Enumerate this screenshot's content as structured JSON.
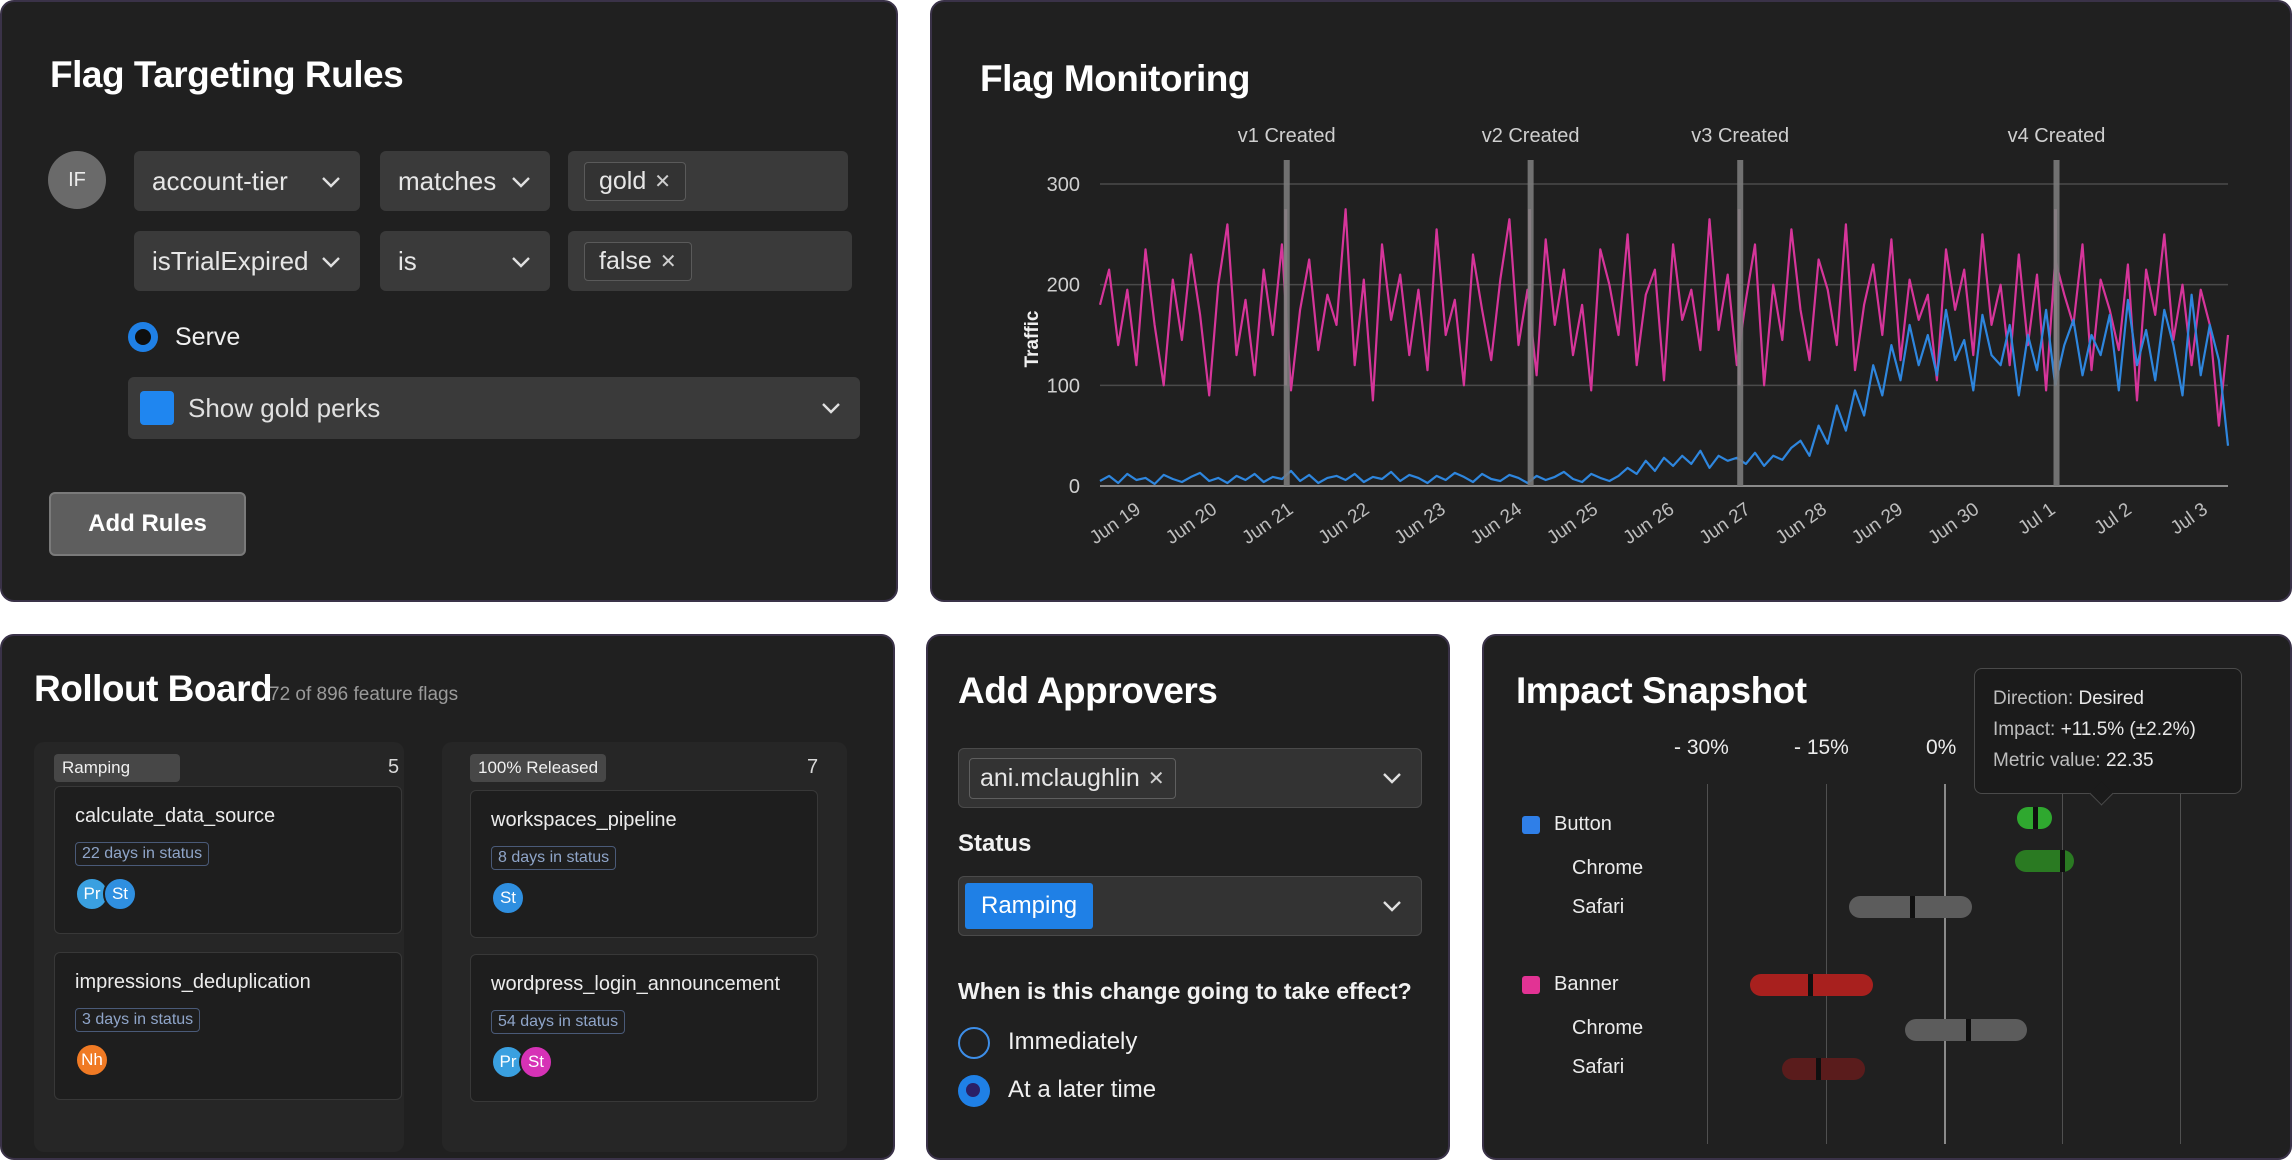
{
  "targeting": {
    "title": "Flag Targeting Rules",
    "if_label": "IF",
    "rows": [
      {
        "attribute": "account-tier",
        "operator": "matches",
        "value": "gold"
      },
      {
        "attribute": "isTrialExpired",
        "operator": "is",
        "value": "false"
      }
    ],
    "serve_label": "Serve",
    "variation": "Show gold perks",
    "variation_color": "#1f86f0",
    "add_button": "Add Rules"
  },
  "monitoring": {
    "title": "Flag Monitoring",
    "y_label": "Traffic",
    "chart_data": {
      "type": "line",
      "title": "Flag Monitoring",
      "ylabel": "Traffic",
      "ylim": [
        0,
        300
      ],
      "yticks": [
        0,
        100,
        200,
        300
      ],
      "xlim": [
        0,
        14.8
      ],
      "x_tick_labels": [
        "Jun 19",
        "Jun 20",
        "Jun 21",
        "Jun 22",
        "Jun 23",
        "Jun 24",
        "Jun 25",
        "Jun 26",
        "Jun 27",
        "Jun 28",
        "Jun 29",
        "Jun 30",
        "Jul 1",
        "Jul 2",
        "Jul 3"
      ],
      "annotations": [
        {
          "label": "v1 Created",
          "x": 2.45
        },
        {
          "label": "v2 Created",
          "x": 5.65
        },
        {
          "label": "v3 Created",
          "x": 8.4
        },
        {
          "label": "v4 Created",
          "x": 12.55
        }
      ],
      "series": [
        {
          "name": "pink",
          "color": "#d6359a",
          "values": [
            180,
            215,
            140,
            195,
            120,
            235,
            160,
            100,
            205,
            145,
            230,
            170,
            90,
            200,
            260,
            130,
            185,
            110,
            215,
            150,
            240,
            95,
            175,
            225,
            135,
            190,
            160,
            275,
            120,
            205,
            85,
            240,
            165,
            210,
            130,
            195,
            115,
            255,
            150,
            185,
            100,
            230,
            175,
            125,
            205,
            265,
            140,
            195,
            110,
            245,
            160,
            215,
            130,
            180,
            95,
            235,
            200,
            150,
            250,
            120,
            190,
            215,
            105,
            240,
            165,
            195,
            135,
            265,
            155,
            210,
            120,
            185,
            240,
            100,
            200,
            145,
            255,
            175,
            125,
            225,
            195,
            140,
            260,
            115,
            180,
            220,
            150,
            245,
            125,
            205,
            165,
            190,
            105,
            235,
            175,
            215,
            130,
            250,
            160,
            200,
            120,
            230,
            140,
            210,
            95,
            225,
            190,
            160,
            240,
            115,
            205,
            175,
            135,
            220,
            85,
            215,
            170,
            250,
            145,
            200,
            120,
            195,
            160,
            60,
            150
          ],
          "spikes_at": [
            2.45,
            5.65,
            8.4,
            12.55
          ],
          "spike_height": 275,
          "spike_color": "#f0a0cd"
        },
        {
          "name": "blue",
          "color": "#2e86de",
          "values": [
            5,
            10,
            3,
            12,
            6,
            8,
            2,
            11,
            7,
            4,
            9,
            13,
            5,
            8,
            3,
            10,
            6,
            12,
            4,
            9,
            7,
            15,
            5,
            11,
            3,
            8,
            10,
            6,
            12,
            4,
            9,
            7,
            14,
            5,
            11,
            8,
            3,
            10,
            6,
            13,
            9,
            4,
            12,
            7,
            5,
            11,
            8,
            3,
            10,
            6,
            9,
            14,
            7,
            4,
            12,
            8,
            5,
            10,
            18,
            12,
            25,
            15,
            28,
            20,
            30,
            22,
            35,
            18,
            30,
            25,
            28,
            22,
            33,
            20,
            30,
            26,
            38,
            45,
            30,
            60,
            42,
            80,
            55,
            95,
            70,
            120,
            90,
            140,
            105,
            160,
            120,
            150,
            110,
            175,
            125,
            145,
            95,
            170,
            130,
            120,
            160,
            90,
            150,
            115,
            175,
            100,
            140,
            165,
            110,
            150,
            130,
            170,
            95,
            185,
            120,
            155,
            105,
            175,
            140,
            90,
            190,
            110,
            160,
            125,
            40
          ]
        }
      ]
    }
  },
  "rollout": {
    "title": "Rollout Board",
    "subtitle": "72 of 896 feature flags",
    "columns": [
      {
        "label": "Ramping",
        "count": "5",
        "cards": [
          {
            "name": "calculate_data_source",
            "days": "22 days in status",
            "avatars": [
              {
                "initials": "Pr",
                "color": "#3aa0e0"
              },
              {
                "initials": "St",
                "color": "#2f8fe0"
              }
            ]
          },
          {
            "name": "impressions_deduplication",
            "days": "3 days in status",
            "avatars": [
              {
                "initials": "Nh",
                "color": "#f07a24"
              }
            ]
          }
        ]
      },
      {
        "label": "100% Released",
        "count": "7",
        "cards": [
          {
            "name": "workspaces_pipeline",
            "days": "8 days in status",
            "avatars": [
              {
                "initials": "St",
                "color": "#2f8fe0"
              }
            ]
          },
          {
            "name": "wordpress_login_announcement",
            "days": "54 days in status",
            "avatars": [
              {
                "initials": "Pr",
                "color": "#3aa0e0"
              },
              {
                "initials": "St",
                "color": "#d632b6"
              }
            ]
          }
        ]
      }
    ]
  },
  "approvers": {
    "title": "Add Approvers",
    "approver": "ani.mclaughlin",
    "status_label": "Status",
    "status_value": "Ramping",
    "question": "When is this change going to take effect?",
    "options": [
      "Immediately",
      "At a later time"
    ],
    "selected_index": 1
  },
  "impact": {
    "title": "Impact Snapshot",
    "ticks": [
      "- 30%",
      "- 15%",
      "0%"
    ],
    "tooltip": {
      "direction_label": "Direction:",
      "direction": "Desired",
      "impact_label": "Impact:",
      "impact": "+11.5% (±2.2%)",
      "metric_label": "Metric value:",
      "metric": "22.35"
    },
    "groups": [
      {
        "name": "Button",
        "color": "#2f7fe8",
        "rows": [
          {
            "label": "",
            "value": 11.5,
            "low": 9.3,
            "high": 13.7,
            "color": "#2fa82f"
          },
          {
            "label": "Chrome",
            "value": 15,
            "low": 9,
            "high": 16.5,
            "color": "#2a7a22"
          },
          {
            "label": "Safari",
            "value": -4,
            "low": -12,
            "high": 3.5,
            "color": "#5c5c5c"
          }
        ]
      },
      {
        "name": "Banner",
        "color": "#e23394",
        "rows": [
          {
            "label": "",
            "value": -17,
            "low": -24.5,
            "high": -9,
            "color": "#a8201e"
          },
          {
            "label": "Chrome",
            "value": 3,
            "low": -5,
            "high": 10.5,
            "color": "#5c5c5c"
          },
          {
            "label": "Safari",
            "value": -16,
            "low": -20.5,
            "high": -10,
            "color": "#5a1c1c"
          }
        ]
      }
    ]
  }
}
